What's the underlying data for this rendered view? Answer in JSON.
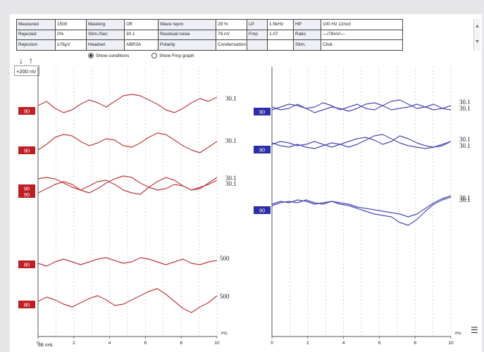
{
  "params": {
    "rows": [
      [
        {
          "label": "Measured",
          "value": "1500"
        },
        {
          "label": "Masking",
          "value": "Off"
        },
        {
          "label": "Wave repro",
          "value": "29 %"
        },
        {
          "label": "LP",
          "value": "1.5kHz"
        },
        {
          "label": "HP",
          "value": "100 Hz 12/oct"
        }
      ],
      [
        {
          "label": "Rejected",
          "value": "0%"
        },
        {
          "label": "Stim./Sec",
          "value": "30.1"
        },
        {
          "label": "Residual noise",
          "value": "76 nV"
        },
        {
          "label": "Fmp",
          "value": "1.07"
        },
        {
          "label": "Ratio",
          "value": "—/78nV/—"
        }
      ],
      [
        {
          "label": "Rejection",
          "value": "±78µV"
        },
        {
          "label": "Headset",
          "value": "ABR3A"
        },
        {
          "label": "Polarity",
          "value": "Condensation"
        },
        {
          "label": "",
          "value": ""
        },
        {
          "label": "Stim.",
          "value": "Click"
        }
      ]
    ]
  },
  "options": {
    "show_conditions": "Show conditions",
    "show_fmp": "Show Fmp graph"
  },
  "scale": "+200 nV",
  "axis": {
    "ticks": [
      "0",
      "2",
      "4",
      "6",
      "8",
      "10"
    ],
    "unit": "ms",
    "bottom_label": "dB nHL"
  },
  "colors": {
    "left_trace": "#c0393b",
    "right_trace": "#4a4ab8",
    "left_marker": "#bf1e24",
    "right_marker": "#2d2da8",
    "grid": "#bdbdbd"
  },
  "left_plot": {
    "markers": [
      {
        "text": "90",
        "sub": ""
      },
      {
        "text": "90",
        "sub": ""
      },
      {
        "text": "90",
        "sub": "90"
      },
      {
        "text": "80",
        "sub": ""
      },
      {
        "text": "80",
        "sub": ""
      }
    ],
    "labels": [
      "30.1",
      "30.1",
      "30.1",
      "30.1",
      "500",
      "500"
    ]
  },
  "right_plot": {
    "markers": [
      {
        "text": "90",
        "sub": ""
      },
      {
        "text": "90",
        "sub": ""
      },
      {
        "text": "90",
        "sub": ""
      }
    ],
    "labels": [
      "30.1",
      "30.1",
      "30.1",
      "30.1",
      "30.1",
      "30.1"
    ]
  }
}
